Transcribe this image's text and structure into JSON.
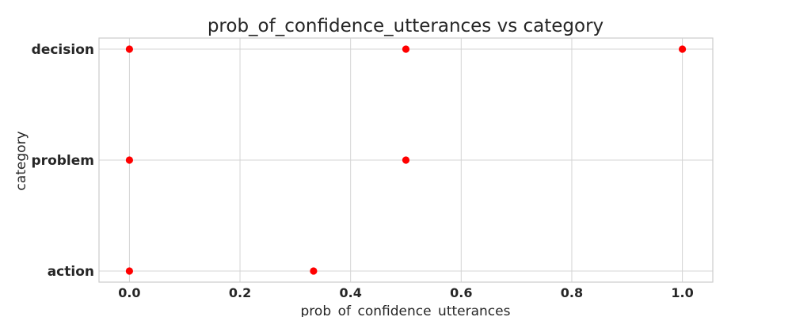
{
  "chart_data": {
    "type": "scatter",
    "title": "prob_of_confidence_utterances vs category",
    "xlabel": "prob_of_confidence_utterances",
    "ylabel": "category",
    "xlim": [
      -0.055,
      1.055
    ],
    "xticks": [
      0.0,
      0.2,
      0.4,
      0.6,
      0.8,
      1.0
    ],
    "xtick_labels": [
      "0.0",
      "0.2",
      "0.4",
      "0.6",
      "0.8",
      "1.0"
    ],
    "categories": [
      "action",
      "problem",
      "decision"
    ],
    "grid": true,
    "legend": "none",
    "marker_color": "#ff0000",
    "points": [
      {
        "x": 0.0,
        "y": "decision"
      },
      {
        "x": 0.5,
        "y": "decision"
      },
      {
        "x": 1.0,
        "y": "decision"
      },
      {
        "x": 0.0,
        "y": "problem"
      },
      {
        "x": 0.5,
        "y": "problem"
      },
      {
        "x": 0.0,
        "y": "action"
      },
      {
        "x": 0.333,
        "y": "action"
      }
    ]
  }
}
